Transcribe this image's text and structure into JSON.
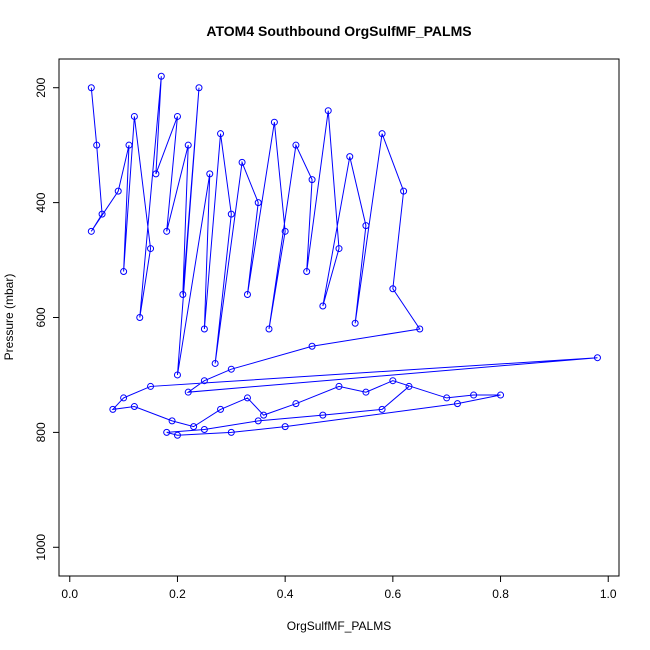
{
  "chart_data": {
    "type": "scatter",
    "title": "ATOM4 Southbound OrgSulfMF_PALMS",
    "xlabel": "OrgSulfMF_PALMS",
    "ylabel": "Pressure (mbar)",
    "xlim": [
      -0.02,
      1.02
    ],
    "ylim": [
      1050,
      150
    ],
    "x_ticks": [
      0,
      0.2,
      0.4,
      0.6,
      0.8,
      1
    ],
    "x_tick_labels": [
      "0.0",
      "0.2",
      "0.4",
      "0.6",
      "0.8",
      "1.0"
    ],
    "y_ticks": [
      200,
      400,
      600,
      800,
      1000
    ],
    "y_tick_labels": [
      "200",
      "400",
      "600",
      "800",
      "1000"
    ],
    "marker": "open-circle",
    "connect_points": true,
    "series_color": "#0000ff",
    "grid": false,
    "legend": "none",
    "series": [
      {
        "x": [
          0.04,
          0.05,
          0.06,
          0.04,
          0.09,
          0.11,
          0.1,
          0.12,
          0.15,
          0.13,
          0.17,
          0.16,
          0.2,
          0.18,
          0.22,
          0.21,
          0.24,
          0.2,
          0.26,
          0.25,
          0.28,
          0.3,
          0.27,
          0.32,
          0.35,
          0.33,
          0.38,
          0.4,
          0.37,
          0.42,
          0.45,
          0.44,
          0.48,
          0.5,
          0.47,
          0.52,
          0.55,
          0.53,
          0.58,
          0.62,
          0.6,
          0.65,
          0.45,
          0.3,
          0.25,
          0.22,
          0.98,
          0.15,
          0.1,
          0.08,
          0.12,
          0.19,
          0.23,
          0.28,
          0.33,
          0.36,
          0.42,
          0.5,
          0.55,
          0.6,
          0.7,
          0.75,
          0.8,
          0.72,
          0.4,
          0.3,
          0.2,
          0.18,
          0.25,
          0.35,
          0.47,
          0.58,
          0.63
        ],
        "y": [
          200,
          300,
          420,
          450,
          380,
          300,
          520,
          250,
          480,
          600,
          180,
          350,
          250,
          450,
          300,
          560,
          200,
          700,
          350,
          620,
          280,
          420,
          680,
          330,
          400,
          560,
          260,
          450,
          620,
          300,
          360,
          520,
          240,
          480,
          580,
          320,
          440,
          610,
          280,
          380,
          550,
          620,
          650,
          690,
          710,
          730,
          670,
          720,
          740,
          760,
          755,
          780,
          790,
          760,
          740,
          770,
          750,
          720,
          730,
          710,
          740,
          735,
          735,
          750,
          790,
          800,
          805,
          800,
          795,
          780,
          770,
          760,
          720
        ]
      }
    ]
  }
}
